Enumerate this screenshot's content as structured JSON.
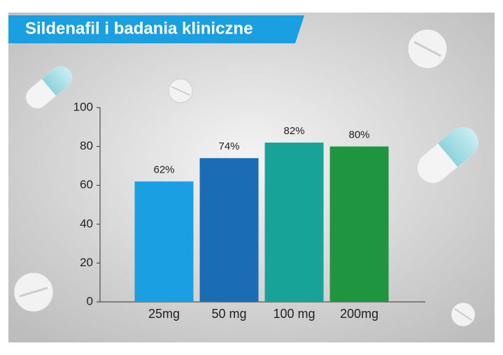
{
  "chart_data": {
    "type": "bar",
    "title": "Sildenafil i badania kliniczne",
    "categories": [
      "25mg",
      "50 mg",
      "100 mg",
      "200mg"
    ],
    "values": [
      62,
      74,
      82,
      80
    ],
    "value_labels": [
      "62%",
      "74%",
      "82%",
      "80%"
    ],
    "colors": [
      "#1aa0e2",
      "#1a6db3",
      "#17a398",
      "#1f9540"
    ],
    "ylim": [
      0,
      100
    ],
    "yticks": [
      0,
      20,
      40,
      60,
      80,
      100
    ]
  }
}
